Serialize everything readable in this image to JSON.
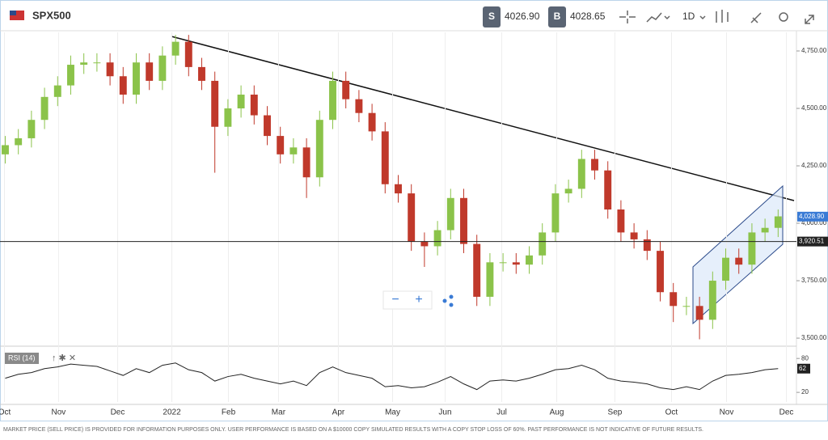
{
  "toolbar": {
    "symbol": "SPX500",
    "sell_label": "S",
    "sell_price": "4026.90",
    "buy_label": "B",
    "buy_price": "4028.65",
    "timeframe": "1D"
  },
  "zoom": {
    "minus": "−",
    "plus": "+"
  },
  "footer": "MARKET PRICE (SELL PRICE) IS PROVIDED FOR INFORMATION PURPOSES ONLY. USER PERFORMANCE IS BASED ON A $10000 COPY SIMULATED RESULTS WITH A COPY STOP LOSS OF 60%. PAST PERFORMANCE IS NOT INDICATIVE OF FUTURE RESULTS.",
  "chart_data": [
    {
      "type": "candlestick",
      "up_color": "#8bc34a",
      "down_color": "#c0392b",
      "open": [
        4300,
        4340,
        4370,
        4450,
        4550,
        4600,
        4690,
        4700,
        4700,
        4640,
        4560,
        4700,
        4620,
        4730,
        4790,
        4680,
        4620,
        4420,
        4500,
        4560,
        4470,
        4380,
        4300,
        4330,
        4200,
        4450,
        4620,
        4540,
        4480,
        4400,
        4170,
        4130,
        3920,
        3900,
        3970,
        4110,
        3910,
        3680,
        3830,
        3830,
        3820,
        3860,
        3960,
        4130,
        4150,
        4280,
        4230,
        4060,
        3960,
        3930,
        3880,
        3700,
        3640,
        3640,
        3580,
        3750,
        3850,
        3820,
        3960,
        3980
      ],
      "high": [
        4380,
        4410,
        4490,
        4590,
        4640,
        4730,
        4740,
        4740,
        4740,
        4680,
        4740,
        4740,
        4770,
        4820,
        4820,
        4720,
        4660,
        4540,
        4600,
        4600,
        4510,
        4420,
        4370,
        4370,
        4490,
        4660,
        4660,
        4580,
        4520,
        4440,
        4210,
        4170,
        3960,
        4010,
        4150,
        4150,
        3950,
        3870,
        3870,
        3870,
        3900,
        4000,
        4170,
        4190,
        4320,
        4320,
        4270,
        4100,
        4000,
        3970,
        3920,
        3740,
        3680,
        3680,
        3790,
        3890,
        3890,
        4000,
        4020,
        4060
      ],
      "low": [
        4260,
        4300,
        4330,
        4410,
        4510,
        4560,
        4650,
        4660,
        4600,
        4520,
        4520,
        4580,
        4580,
        4690,
        4640,
        4580,
        4220,
        4380,
        4460,
        4430,
        4340,
        4260,
        4260,
        4110,
        4160,
        4410,
        4500,
        4440,
        4360,
        4130,
        4090,
        3880,
        3810,
        3860,
        3930,
        3870,
        3640,
        3640,
        3790,
        3780,
        3780,
        3820,
        3920,
        4090,
        4110,
        4190,
        4020,
        3920,
        3890,
        3840,
        3660,
        3570,
        3600,
        3495,
        3540,
        3710,
        3780,
        3780,
        3920,
        3940
      ],
      "close": [
        4340,
        4370,
        4450,
        4550,
        4600,
        4690,
        4700,
        4700,
        4640,
        4560,
        4700,
        4620,
        4730,
        4790,
        4680,
        4620,
        4420,
        4500,
        4560,
        4470,
        4380,
        4300,
        4330,
        4200,
        4450,
        4620,
        4540,
        4480,
        4400,
        4170,
        4130,
        3920,
        3900,
        3970,
        4110,
        3910,
        3680,
        3830,
        3830,
        3820,
        3860,
        3960,
        4130,
        4150,
        4280,
        4230,
        4060,
        3960,
        3930,
        3880,
        3700,
        3640,
        3640,
        3580,
        3750,
        3850,
        3820,
        3960,
        3980,
        4030
      ],
      "xlim": [
        -0.4,
        60.4
      ],
      "xticks": [
        {
          "value": -0.06,
          "label": "Oct"
        },
        {
          "value": 4.07,
          "label": "Nov"
        },
        {
          "value": 8.58,
          "label": "Dec"
        },
        {
          "value": 12.72,
          "label": "2022"
        },
        {
          "value": 17.04,
          "label": "Feb"
        },
        {
          "value": 20.86,
          "label": "Mar"
        },
        {
          "value": 25.43,
          "label": "Apr"
        },
        {
          "value": 29.57,
          "label": "May"
        },
        {
          "value": 33.58,
          "label": "Jun"
        },
        {
          "value": 37.9,
          "label": "Jul"
        },
        {
          "value": 42.1,
          "label": "Aug"
        },
        {
          "value": 46.54,
          "label": "Sep"
        },
        {
          "value": 50.86,
          "label": "Oct"
        },
        {
          "value": 55.06,
          "label": "Nov"
        },
        {
          "value": 59.63,
          "label": "Dec"
        }
      ],
      "ylim": [
        3465,
        4831
      ],
      "yticks": [
        {
          "value": 3500,
          "label": "3,500.00"
        },
        {
          "value": 3750,
          "label": "3,750.00"
        },
        {
          "value": 4000,
          "label": "4,000.00"
        },
        {
          "value": 4250,
          "label": "4,250.00"
        },
        {
          "value": 4500,
          "label": "4,500.00"
        },
        {
          "value": 4750,
          "label": "4,750.00"
        }
      ],
      "last_price": {
        "value": 4028.9,
        "label": "4,028.90"
      },
      "price_line": {
        "value": 3920.51,
        "label": "3,920.51"
      }
    },
    {
      "type": "line",
      "title": "RSI (14)",
      "color": "#222222",
      "values": [
        45,
        52,
        55,
        62,
        65,
        70,
        68,
        66,
        58,
        50,
        62,
        55,
        68,
        72,
        60,
        55,
        40,
        48,
        52,
        45,
        40,
        35,
        40,
        32,
        55,
        65,
        55,
        50,
        45,
        30,
        32,
        28,
        30,
        38,
        48,
        35,
        25,
        40,
        42,
        40,
        45,
        52,
        60,
        62,
        68,
        60,
        45,
        40,
        38,
        35,
        28,
        25,
        30,
        25,
        40,
        50,
        52,
        55,
        60,
        62
      ],
      "ylim": [
        3,
        96
      ],
      "yticks": [
        20,
        80
      ],
      "last_value": 62
    }
  ]
}
